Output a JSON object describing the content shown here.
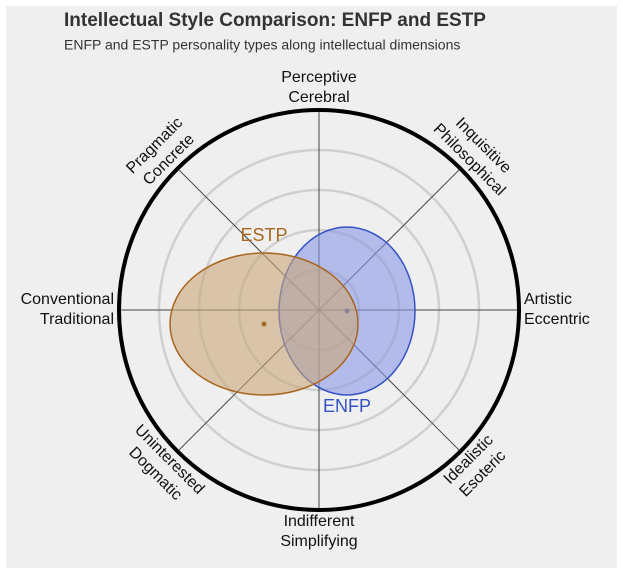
{
  "chart_data": {
    "type": "ellipse",
    "title": "Intellectual Style Comparison: ENFP and ESTP",
    "subtitle": "ENFP and ESTP personality types along intellectual dimensions",
    "axes": [
      [
        "Perceptive",
        "Cerebral"
      ],
      [
        "Inquisitive",
        "Philosophical"
      ],
      [
        "Artistic",
        "Eccentric"
      ],
      [
        "Idealistic",
        "Esoteric"
      ],
      [
        "Indifferent",
        "Simplifying"
      ],
      [
        "Uninterested",
        "Dogmatic"
      ],
      [
        "Conventional",
        "Traditional"
      ],
      [
        "Pragmatic",
        "Concrete"
      ]
    ],
    "rlim": [
      0,
      1
    ],
    "rticks": [
      0.2,
      0.4,
      0.6,
      0.8
    ],
    "series": [
      {
        "name": "ENFP",
        "color": "#3552c4",
        "fill": "#8898e4",
        "x": 0.14,
        "y": -0.005,
        "rx": 0.34,
        "ry": 0.42,
        "label_position": "bottom"
      },
      {
        "name": "ESTP",
        "color": "#a9661f",
        "fill": "#c9a67a",
        "x": -0.275,
        "y": -0.07,
        "rx": 0.47,
        "ry": 0.355,
        "label_position": "top"
      }
    ]
  }
}
